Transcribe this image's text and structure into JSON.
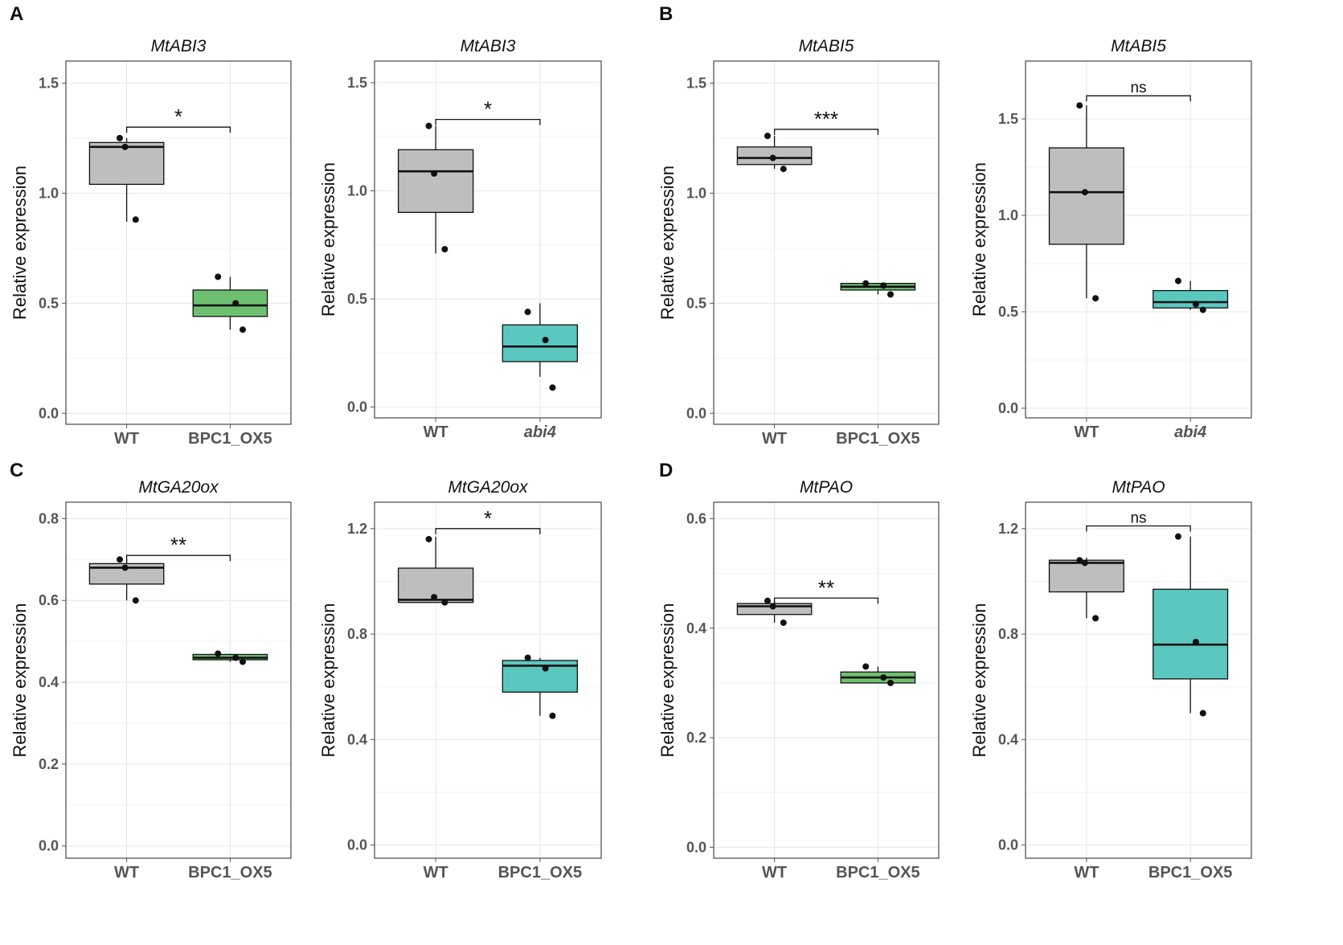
{
  "panels": {
    "A": "A",
    "B": "B",
    "C": "C",
    "D": "D"
  },
  "colors": {
    "wt": "#bebebe",
    "green": "#6cc06f",
    "teal": "#5bc8c0",
    "grid": "#e6e6e6",
    "frame": "#555555"
  },
  "chart_data": [
    {
      "type": "box",
      "panel": "A",
      "title": "MtABI3",
      "ylabel": "Relative expression",
      "ylim": [
        -0.05,
        1.6
      ],
      "yticks": [
        0.0,
        0.5,
        1.0,
        1.5
      ],
      "yticklabels": [
        "0.0",
        "0.5",
        "1.0",
        "1.5"
      ],
      "categories": [
        "WT",
        "BPC1_OX5"
      ],
      "italic_categories": [
        false,
        false
      ],
      "boxes": [
        {
          "fill": "wt",
          "q1": 1.04,
          "median": 1.21,
          "q3": 1.23,
          "lower": 0.87,
          "upper": 1.25,
          "points": [
            1.25,
            1.21,
            0.88
          ]
        },
        {
          "fill": "green",
          "q1": 0.44,
          "median": 0.49,
          "q3": 0.56,
          "lower": 0.38,
          "upper": 0.62,
          "points": [
            0.62,
            0.5,
            0.38
          ]
        }
      ],
      "significance": "*",
      "bracket_y": 1.3
    },
    {
      "type": "box",
      "panel": "A",
      "title": "MtABI3",
      "ylabel": "Relative expression",
      "ylim": [
        -0.05,
        1.6
      ],
      "yticks": [
        0.0,
        0.5,
        1.0,
        1.5
      ],
      "yticklabels": [
        "0.0",
        "0.5",
        "1.0",
        "1.5"
      ],
      "categories": [
        "WT",
        "abi4"
      ],
      "italic_categories": [
        false,
        true
      ],
      "boxes": [
        {
          "fill": "wt",
          "q1": 0.9,
          "median": 1.09,
          "q3": 1.19,
          "lower": 0.71,
          "upper": 1.3,
          "points": [
            1.3,
            1.08,
            0.73
          ]
        },
        {
          "fill": "teal",
          "q1": 0.21,
          "median": 0.28,
          "q3": 0.38,
          "lower": 0.14,
          "upper": 0.48,
          "points": [
            0.44,
            0.31,
            0.09
          ]
        }
      ],
      "significance": "*",
      "bracket_y": 1.33
    },
    {
      "type": "box",
      "panel": "B",
      "title": "MtABI5",
      "ylabel": "Relative expression",
      "ylim": [
        -0.05,
        1.6
      ],
      "yticks": [
        0.0,
        0.5,
        1.0,
        1.5
      ],
      "yticklabels": [
        "0.0",
        "0.5",
        "1.0",
        "1.5"
      ],
      "categories": [
        "WT",
        "BPC1_OX5"
      ],
      "italic_categories": [
        false,
        false
      ],
      "boxes": [
        {
          "fill": "wt",
          "q1": 1.13,
          "median": 1.16,
          "q3": 1.21,
          "lower": 1.11,
          "upper": 1.26,
          "points": [
            1.26,
            1.16,
            1.11
          ]
        },
        {
          "fill": "green",
          "q1": 0.56,
          "median": 0.575,
          "q3": 0.59,
          "lower": 0.54,
          "upper": 0.59,
          "points": [
            0.59,
            0.58,
            0.54
          ]
        }
      ],
      "significance": "***",
      "bracket_y": 1.29
    },
    {
      "type": "box",
      "panel": "B",
      "title": "MtABI5",
      "ylabel": "Relative expression",
      "ylim": [
        -0.05,
        1.8
      ],
      "yticks": [
        0.0,
        0.5,
        1.0,
        1.5
      ],
      "yticklabels": [
        "0.0",
        "0.5",
        "1.0",
        "1.5"
      ],
      "categories": [
        "WT",
        "abi4"
      ],
      "italic_categories": [
        false,
        true
      ],
      "boxes": [
        {
          "fill": "wt",
          "q1": 0.85,
          "median": 1.12,
          "q3": 1.35,
          "lower": 0.57,
          "upper": 1.57,
          "points": [
            1.57,
            1.12,
            0.57
          ]
        },
        {
          "fill": "teal",
          "q1": 0.52,
          "median": 0.55,
          "q3": 0.61,
          "lower": 0.51,
          "upper": 0.66,
          "points": [
            0.66,
            0.54,
            0.51
          ]
        }
      ],
      "significance": "ns",
      "bracket_y": 1.62
    },
    {
      "type": "box",
      "panel": "C",
      "title": "MtGA20ox",
      "ylabel": "Relative expression",
      "ylim": [
        -0.03,
        0.84
      ],
      "yticks": [
        0.0,
        0.2,
        0.4,
        0.6,
        0.8
      ],
      "yticklabels": [
        "0.0",
        "0.2",
        "0.4",
        "0.6",
        "0.8"
      ],
      "categories": [
        "WT",
        "BPC1_OX5"
      ],
      "italic_categories": [
        false,
        false
      ],
      "boxes": [
        {
          "fill": "wt",
          "q1": 0.64,
          "median": 0.68,
          "q3": 0.69,
          "lower": 0.6,
          "upper": 0.7,
          "points": [
            0.7,
            0.68,
            0.6
          ]
        },
        {
          "fill": "green",
          "q1": 0.455,
          "median": 0.46,
          "q3": 0.468,
          "lower": 0.45,
          "upper": 0.47,
          "points": [
            0.47,
            0.46,
            0.45
          ]
        }
      ],
      "significance": "**",
      "bracket_y": 0.71
    },
    {
      "type": "box",
      "panel": "C",
      "title": "MtGA20ox",
      "ylabel": "Relative expression",
      "ylim": [
        -0.05,
        1.3
      ],
      "yticks": [
        0.0,
        0.4,
        0.8,
        1.2
      ],
      "yticklabels": [
        "0.0",
        "0.4",
        "0.8",
        "1.2"
      ],
      "categories": [
        "WT",
        "BPC1_OX5"
      ],
      "italic_categories": [
        false,
        false
      ],
      "boxes": [
        {
          "fill": "wt",
          "q1": 0.92,
          "median": 0.93,
          "q3": 1.05,
          "lower": 0.92,
          "upper": 1.17,
          "points": [
            1.16,
            0.94,
            0.92
          ]
        },
        {
          "fill": "teal",
          "q1": 0.58,
          "median": 0.68,
          "q3": 0.7,
          "lower": 0.49,
          "upper": 0.71,
          "points": [
            0.71,
            0.67,
            0.49
          ]
        }
      ],
      "significance": "*",
      "bracket_y": 1.2
    },
    {
      "type": "box",
      "panel": "D",
      "title": "MtPAO",
      "ylabel": "Relative expression",
      "ylim": [
        -0.02,
        0.63
      ],
      "yticks": [
        0.0,
        0.2,
        0.4,
        0.6
      ],
      "yticklabels": [
        "0.0",
        "0.2",
        "0.4",
        "0.6"
      ],
      "categories": [
        "WT",
        "BPC1_OX5"
      ],
      "italic_categories": [
        false,
        false
      ],
      "boxes": [
        {
          "fill": "wt",
          "q1": 0.425,
          "median": 0.44,
          "q3": 0.445,
          "lower": 0.41,
          "upper": 0.45,
          "points": [
            0.45,
            0.44,
            0.41
          ]
        },
        {
          "fill": "green",
          "q1": 0.3,
          "median": 0.31,
          "q3": 0.32,
          "lower": 0.3,
          "upper": 0.33,
          "points": [
            0.33,
            0.31,
            0.3
          ]
        }
      ],
      "significance": "**",
      "bracket_y": 0.455
    },
    {
      "type": "box",
      "panel": "D",
      "title": "MtPAO",
      "ylabel": "Relative expression",
      "ylim": [
        -0.05,
        1.3
      ],
      "yticks": [
        0.0,
        0.4,
        0.8,
        1.2
      ],
      "yticklabels": [
        "0.0",
        "0.4",
        "0.8",
        "1.2"
      ],
      "categories": [
        "WT",
        "BPC1_OX5"
      ],
      "italic_categories": [
        false,
        false
      ],
      "boxes": [
        {
          "fill": "wt",
          "q1": 0.96,
          "median": 1.07,
          "q3": 1.08,
          "lower": 0.86,
          "upper": 1.09,
          "points": [
            1.08,
            1.07,
            0.86
          ]
        },
        {
          "fill": "teal",
          "q1": 0.63,
          "median": 0.76,
          "q3": 0.97,
          "lower": 0.5,
          "upper": 1.17,
          "points": [
            1.17,
            0.77,
            0.5
          ]
        }
      ],
      "significance": "ns",
      "bracket_y": 1.21
    }
  ]
}
